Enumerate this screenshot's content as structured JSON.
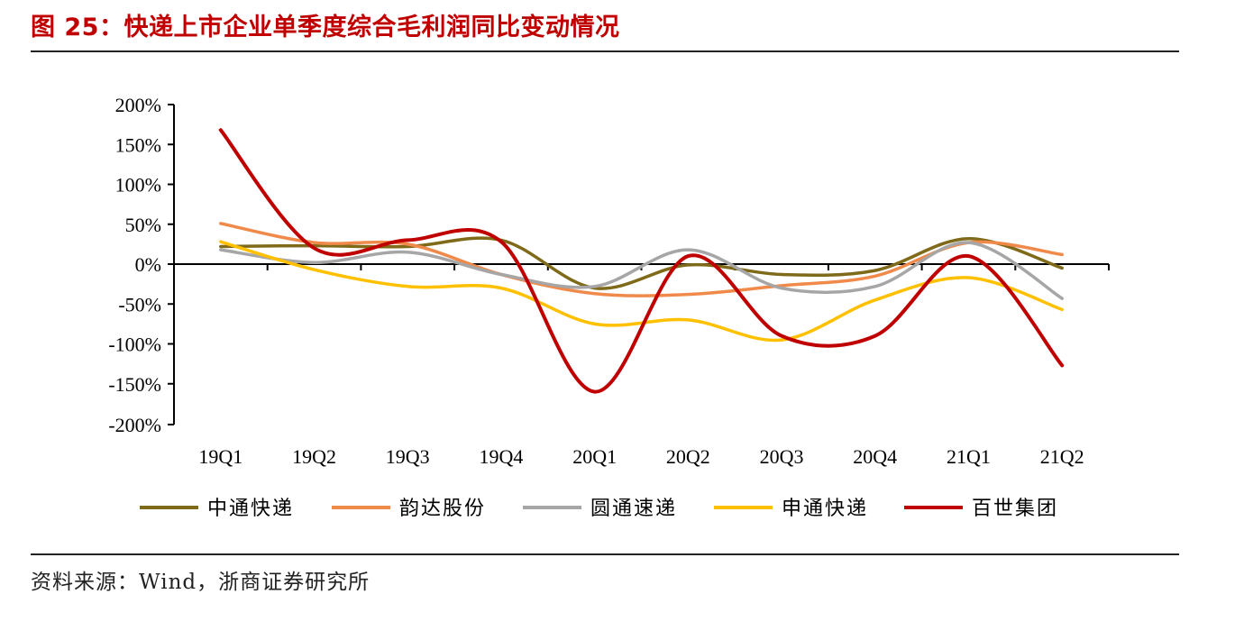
{
  "figure": {
    "title": "图 25：快递上市企业单季度综合毛利润同比变动情况",
    "source": "资料来源：Wind，浙商证券研究所"
  },
  "chart_data": {
    "type": "line",
    "categories": [
      "19Q1",
      "19Q2",
      "19Q3",
      "19Q4",
      "20Q1",
      "20Q2",
      "20Q3",
      "20Q4",
      "21Q1",
      "21Q2"
    ],
    "ylim": [
      -200,
      200
    ],
    "yticks": [
      200,
      150,
      100,
      50,
      0,
      -50,
      -100,
      -150,
      -200
    ],
    "ytick_labels": [
      "200%",
      "150%",
      "100%",
      "50%",
      "0%",
      "-50%",
      "-100%",
      "-150%",
      "-200%"
    ],
    "legend_position": "bottom",
    "grid": false,
    "series": [
      {
        "name": "中通快递",
        "color": "#7f6a1a",
        "values": [
          22,
          23,
          22,
          30,
          -30,
          -1,
          -13,
          -8,
          32,
          -5
        ]
      },
      {
        "name": "韵达股份",
        "color": "#f08a4b",
        "values": [
          51,
          27,
          25,
          -13,
          -37,
          -38,
          -27,
          -15,
          27,
          12
        ]
      },
      {
        "name": "圆通速递",
        "color": "#a6a6a6",
        "values": [
          18,
          2,
          15,
          -13,
          -28,
          18,
          -30,
          -28,
          27,
          -43
        ]
      },
      {
        "name": "申通快递",
        "color": "#ffc000",
        "values": [
          28,
          -7,
          -28,
          -30,
          -75,
          -70,
          -95,
          -45,
          -17,
          -57
        ]
      },
      {
        "name": "百世集团",
        "color": "#c00000",
        "values": [
          168,
          20,
          30,
          28,
          -160,
          10,
          -90,
          -90,
          10,
          -127
        ]
      }
    ]
  }
}
